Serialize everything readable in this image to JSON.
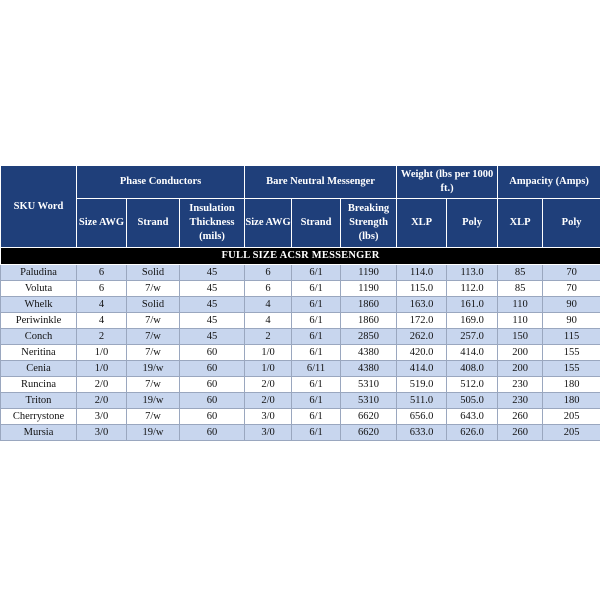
{
  "headers": {
    "sku": "SKU Word",
    "phase": "Phase Conductors",
    "bare": "Bare Neutral Messenger",
    "weight": "Weight (lbs per 1000 ft.)",
    "ampacity": "Ampacity (Amps)",
    "size_awg": "Size AWG",
    "strand": "Strand",
    "insulation": "Insulation Thickness (mils)",
    "size_awg2": "Size AWG",
    "strand2": "Strand",
    "breaking": "Breaking Strength (lbs)",
    "xlp": "XLP",
    "poly": "Poly",
    "xlp2": "XLP",
    "poly2": "Poly"
  },
  "section_title": "FULL SIZE ACSR MESSENGER",
  "rows": [
    [
      "Paludina",
      "6",
      "Solid",
      "45",
      "6",
      "6/1",
      "1190",
      "114.0",
      "113.0",
      "85",
      "70"
    ],
    [
      "Voluta",
      "6",
      "7/w",
      "45",
      "6",
      "6/1",
      "1190",
      "115.0",
      "112.0",
      "85",
      "70"
    ],
    [
      "Whelk",
      "4",
      "Solid",
      "45",
      "4",
      "6/1",
      "1860",
      "163.0",
      "161.0",
      "110",
      "90"
    ],
    [
      "Periwinkle",
      "4",
      "7/w",
      "45",
      "4",
      "6/1",
      "1860",
      "172.0",
      "169.0",
      "110",
      "90"
    ],
    [
      "Conch",
      "2",
      "7/w",
      "45",
      "2",
      "6/1",
      "2850",
      "262.0",
      "257.0",
      "150",
      "115"
    ],
    [
      "Neritina",
      "1/0",
      "7/w",
      "60",
      "1/0",
      "6/1",
      "4380",
      "420.0",
      "414.0",
      "200",
      "155"
    ],
    [
      "Cenia",
      "1/0",
      "19/w",
      "60",
      "1/0",
      "6/11",
      "4380",
      "414.0",
      "408.0",
      "200",
      "155"
    ],
    [
      "Runcina",
      "2/0",
      "7/w",
      "60",
      "2/0",
      "6/1",
      "5310",
      "519.0",
      "512.0",
      "230",
      "180"
    ],
    [
      "Triton",
      "2/0",
      "19/w",
      "60",
      "2/0",
      "6/1",
      "5310",
      "511.0",
      "505.0",
      "230",
      "180"
    ],
    [
      "Cherrystone",
      "3/0",
      "7/w",
      "60",
      "3/0",
      "6/1",
      "6620",
      "656.0",
      "643.0",
      "260",
      "205"
    ],
    [
      "Mursia",
      "3/0",
      "19/w",
      "60",
      "3/0",
      "6/1",
      "6620",
      "633.0",
      "626.0",
      "260",
      "205"
    ]
  ]
}
